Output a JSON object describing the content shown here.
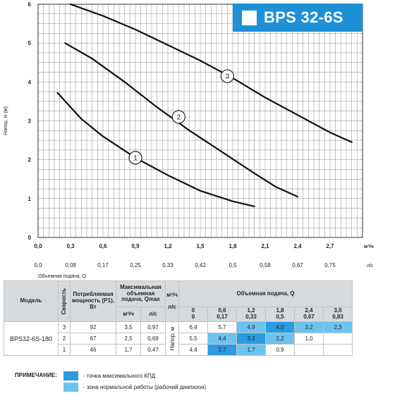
{
  "model_badge": "BPS 32-6S",
  "chart_data": {
    "type": "line",
    "ylabel": "Напор, H (м)",
    "xlabel": "Объемная подача, Q",
    "x_unit": "м³/ч",
    "x2_unit": "л/с",
    "xlim": [
      0,
      3.0
    ],
    "ylim": [
      0,
      6
    ],
    "x_ticks": [
      "0,0",
      "0,3",
      "0,6",
      "0,9",
      "1,2",
      "1,5",
      "1,8",
      "2,1",
      "2,4",
      "2,7"
    ],
    "x2_ticks": [
      "0,0",
      "0,08",
      "0,17",
      "0,25",
      "0,33",
      "0,42",
      "0,5",
      "0,58",
      "0,67",
      "0,75"
    ],
    "y_ticks": [
      "0",
      "1",
      "2",
      "3",
      "4",
      "5",
      "6"
    ],
    "grid": true,
    "series": [
      {
        "name": "1",
        "x": [
          0.18,
          0.4,
          0.6,
          0.9,
          1.2,
          1.5,
          1.8,
          2.0
        ],
        "y": [
          3.72,
          3.05,
          2.6,
          2.05,
          1.6,
          1.2,
          0.93,
          0.8
        ]
      },
      {
        "name": "2",
        "x": [
          0.25,
          0.5,
          0.8,
          1.1,
          1.4,
          1.7,
          2.0,
          2.2,
          2.4
        ],
        "y": [
          5.0,
          4.6,
          4.0,
          3.35,
          2.75,
          2.2,
          1.65,
          1.3,
          1.05
        ]
      },
      {
        "name": "3",
        "x": [
          0.3,
          0.6,
          0.9,
          1.2,
          1.5,
          1.8,
          2.1,
          2.4,
          2.7,
          2.9
        ],
        "y": [
          6.0,
          5.7,
          5.35,
          4.95,
          4.55,
          4.1,
          3.6,
          3.15,
          2.7,
          2.45
        ]
      }
    ],
    "curve_labels": [
      {
        "name": "1",
        "x": 0.9,
        "y": 2.05
      },
      {
        "name": "2",
        "x": 1.3,
        "y": 3.1
      },
      {
        "name": "3",
        "x": 1.75,
        "y": 4.15
      }
    ]
  },
  "table": {
    "h_model": "Модель",
    "h_speed": "Скорость",
    "h_power": "Потребляемая мощность (P1), Вт",
    "h_qmax": "Максимальная объемная подача, Qmax",
    "h_flow": "Объемная подача, Q",
    "h_m3h": "м³/ч",
    "h_ls": "л/с",
    "flow_unit_m3h": "м³/ч",
    "flow_unit_ls": "л/с",
    "flow_m3h": [
      "0",
      "0,6",
      "1,2",
      "1,8",
      "2,4",
      "3,0"
    ],
    "flow_ls": [
      "0",
      "0,17",
      "0,33",
      "0,5",
      "0,67",
      "0,83"
    ],
    "head_label": "Напор, м",
    "model": "BPS32-6S-180",
    "rows": [
      {
        "speed": "3",
        "power": "92",
        "qmax_m3h": "3,5",
        "qmax_ls": "0,97",
        "heads": [
          "6,4",
          "5,7",
          "4,9",
          "4,0",
          "3,2",
          "2,3"
        ]
      },
      {
        "speed": "2",
        "power": "67",
        "qmax_m3h": "2,5",
        "qmax_ls": "0,69",
        "heads": [
          "5,5",
          "4,4",
          "3,3",
          "2,2",
          "1,0",
          ""
        ]
      },
      {
        "speed": "1",
        "power": "46",
        "qmax_m3h": "1,7",
        "qmax_ls": "0,47",
        "heads": [
          "4,4",
          "2,7",
          "1,7",
          "0,9",
          "",
          ""
        ]
      }
    ]
  },
  "notes": {
    "title": "ПРИМЕЧАНИЕ:",
    "max_eff": "- точка максимального КПД",
    "zone": "- зона нормальной работы (рабочий диапазон)"
  },
  "colors": {
    "accent": "#1e90d6",
    "max_eff": "#2a9be0",
    "zone": "#6cc4ee"
  }
}
